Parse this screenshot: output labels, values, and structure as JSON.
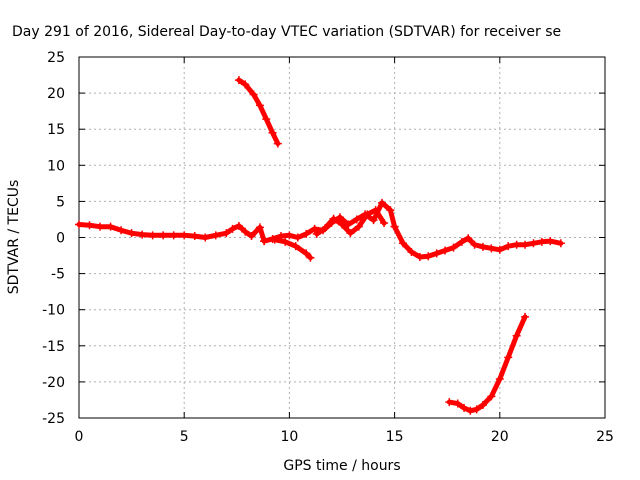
{
  "chart_data": {
    "type": "line",
    "title": "Day 291 of 2016, Sidereal Day-to-day VTEC variation (SDTVAR) for receiver se",
    "xlabel": "GPS time / hours",
    "ylabel": "SDTVAR / TECUs",
    "xlim": [
      0,
      25
    ],
    "ylim": [
      -25,
      25
    ],
    "x_ticks": [
      "0",
      "5",
      "10",
      "15",
      "20",
      "25"
    ],
    "y_ticks": [
      "25",
      "20",
      "15",
      "10",
      "5",
      "0",
      "-5",
      "-10",
      "-15",
      "-20",
      "-25"
    ],
    "x_tick_values": [
      0,
      5,
      10,
      15,
      20,
      25
    ],
    "y_tick_values": [
      25,
      20,
      15,
      10,
      5,
      0,
      -5,
      -10,
      -15,
      -20,
      -25
    ],
    "grid": true,
    "series_color": "#ff0000",
    "series": [
      {
        "x": [
          0,
          0.5,
          1,
          1.5,
          2,
          2.5,
          3,
          3.5,
          4,
          4.5,
          5,
          5.5,
          6,
          6.5,
          7,
          7.3,
          7.6,
          7.9,
          8.2,
          8.6,
          8.8
        ],
        "y": [
          1.8,
          1.7,
          1.5,
          1.5,
          1.0,
          0.6,
          0.4,
          0.3,
          0.3,
          0.3,
          0.3,
          0.2,
          0.0,
          0.3,
          0.6,
          1.2,
          1.6,
          0.8,
          0.2,
          1.4,
          -0.5
        ]
      },
      {
        "x": [
          8.8,
          9.2,
          9.6,
          10.0,
          10.4,
          10.8,
          11.2,
          11.6,
          12.0,
          12.4,
          12.8,
          13.2,
          13.6,
          14.0,
          14.4,
          14.8,
          15.0
        ],
        "y": [
          -0.5,
          -0.2,
          0.2,
          0.3,
          0.0,
          0.5,
          1.2,
          1.0,
          2.0,
          2.8,
          1.8,
          2.5,
          3.2,
          2.4,
          4.8,
          3.8,
          1.5
        ]
      },
      {
        "x": [
          9.3,
          9.8,
          10.3,
          10.8,
          11.0
        ],
        "y": [
          -0.3,
          -0.6,
          -1.2,
          -2.2,
          -2.8
        ]
      },
      {
        "x": [
          11.3,
          11.7,
          12.1,
          12.5,
          12.9,
          13.3,
          13.7,
          14.1,
          14.5
        ],
        "y": [
          0.5,
          1.3,
          2.6,
          1.8,
          0.6,
          1.5,
          3.2,
          3.8,
          2.0
        ]
      },
      {
        "x": [
          15.0,
          15.4,
          15.8,
          16.2,
          16.6,
          17.0,
          17.4,
          17.8,
          18.2,
          18.5,
          18.8,
          19.2,
          19.6,
          20.0,
          20.4,
          20.8,
          21.2,
          21.6,
          22.0,
          22.4,
          22.9
        ],
        "y": [
          1.5,
          -0.8,
          -2.0,
          -2.7,
          -2.6,
          -2.2,
          -1.8,
          -1.4,
          -0.6,
          -0.1,
          -1.0,
          -1.3,
          -1.5,
          -1.7,
          -1.2,
          -1.0,
          -1.0,
          -0.8,
          -0.6,
          -0.5,
          -0.8
        ]
      },
      {
        "x": [
          7.6,
          7.9,
          8.3,
          8.6,
          8.9,
          9.2,
          9.45
        ],
        "y": [
          21.8,
          21.2,
          19.8,
          18.3,
          16.4,
          14.5,
          13.0
        ]
      },
      {
        "x": [
          17.6,
          18.0,
          18.3,
          18.6,
          18.9,
          19.2,
          19.6,
          20.0,
          20.4,
          20.8,
          21.2
        ],
        "y": [
          -22.8,
          -23.0,
          -23.6,
          -24.0,
          -23.8,
          -23.2,
          -22.0,
          -19.6,
          -16.6,
          -13.6,
          -11.0
        ]
      }
    ]
  }
}
